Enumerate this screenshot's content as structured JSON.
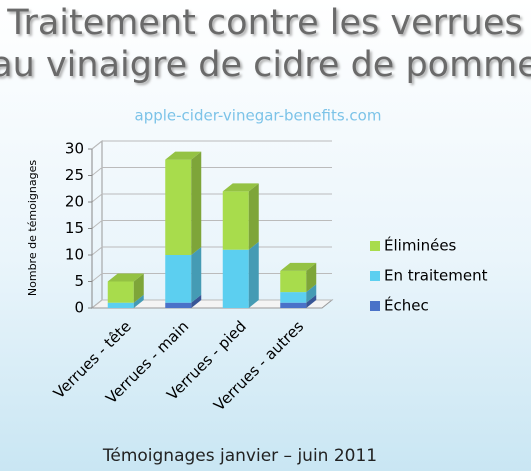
{
  "chart_data": {
    "type": "bar3d_stacked",
    "title": [
      "Traitement contre les verrues",
      "au vinaigre de cidre de pomme"
    ],
    "subtitle": "apple-cider-vinegar-benefits.com",
    "ylabel": "Nombre de témoignages",
    "footer": "Témoignages janvier – juin 2011",
    "categories": [
      "Verrues - tête",
      "Verrues - main",
      "Verrues - pied",
      "Verrues - autres"
    ],
    "series": [
      {
        "name": "Échec",
        "color": "#4a72c8",
        "values": [
          0,
          1,
          0,
          1
        ]
      },
      {
        "name": "En traitement",
        "color": "#5ccff0",
        "values": [
          1,
          9,
          11,
          2
        ]
      },
      {
        "name": "Éliminées",
        "color": "#a8dc4c",
        "values": [
          4,
          18,
          11,
          4
        ]
      }
    ],
    "ylim": [
      0,
      30
    ],
    "yticks": [
      0,
      5,
      10,
      15,
      20,
      25,
      30
    ],
    "grid": true,
    "legend": "right"
  }
}
